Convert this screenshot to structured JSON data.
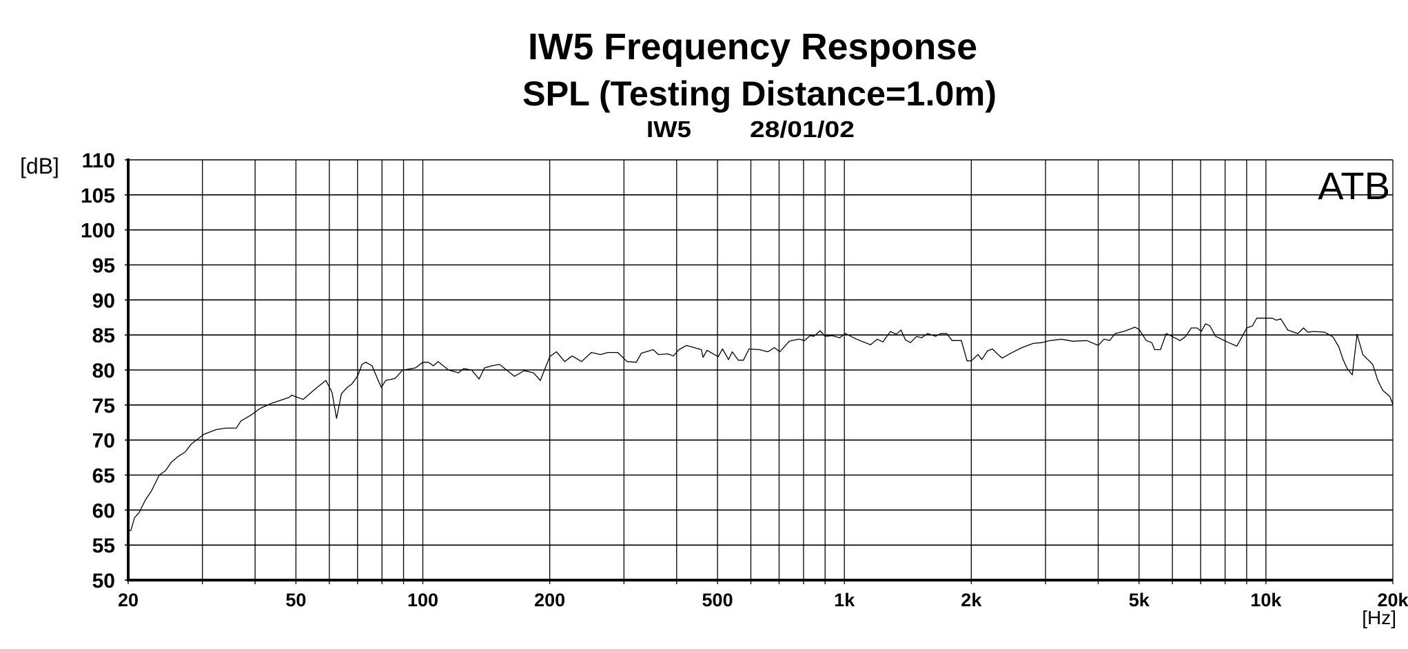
{
  "chart_data": {
    "type": "line",
    "title": "IW5 Frequency Response",
    "subtitle": "SPL (Testing Distance=1.0m)",
    "info_model": "IW5",
    "info_date": "28/01/02",
    "watermark": "ATB",
    "xlabel": "[Hz]",
    "ylabel": "[dB]",
    "xscale": "log",
    "xlim": [
      20,
      20000
    ],
    "ylim": [
      50,
      110
    ],
    "grid": true,
    "x_gridlines": [
      20,
      30,
      40,
      50,
      60,
      70,
      80,
      90,
      100,
      200,
      300,
      400,
      500,
      600,
      700,
      800,
      900,
      1000,
      2000,
      3000,
      4000,
      5000,
      6000,
      7000,
      8000,
      9000,
      10000,
      20000
    ],
    "x_tick_labels": [
      {
        "value": 20,
        "label": "20"
      },
      {
        "value": 50,
        "label": "50"
      },
      {
        "value": 100,
        "label": "100"
      },
      {
        "value": 200,
        "label": "200"
      },
      {
        "value": 500,
        "label": "500"
      },
      {
        "value": 1000,
        "label": "1k"
      },
      {
        "value": 2000,
        "label": "2k"
      },
      {
        "value": 5000,
        "label": "5k"
      },
      {
        "value": 10000,
        "label": "10k"
      },
      {
        "value": 20000,
        "label": "20k"
      }
    ],
    "y_ticks": [
      50,
      55,
      60,
      65,
      70,
      75,
      80,
      85,
      90,
      95,
      100,
      105,
      110
    ],
    "y_tick_labels": [
      "50",
      "55",
      "60",
      "65",
      "70",
      "75",
      "80",
      "85",
      "90",
      "95",
      "100",
      "105",
      "110"
    ],
    "series": [
      {
        "name": "SPL",
        "color": "#000000",
        "x": [
          20,
          20.3,
          20.7,
          21.2,
          22,
          22.7,
          23.7,
          24.5,
          25.3,
          26.2,
          27.3,
          28.2,
          30.2,
          32.4,
          34.2,
          36.1,
          37,
          39.2,
          41.1,
          43.6,
          48.2,
          48.8,
          52,
          56.1,
          58.9,
          60.9,
          62.4,
          64.1,
          66.1,
          67.9,
          70.1,
          71.7,
          73.3,
          75.8,
          78.1,
          79.7,
          81.6,
          86,
          89.6,
          92,
          96,
          100,
          103,
          106,
          108.6,
          115,
          121.5,
          125,
          130.5,
          136,
          140,
          146,
          152,
          165,
          174,
          183,
          190,
          200,
          207.5,
          217,
          226,
          238,
          251,
          264,
          275,
          290,
          305,
          321,
          330,
          352,
          362,
          381,
          393,
          405,
          422,
          458,
          462,
          472,
          502,
          514,
          531,
          542,
          560,
          576,
          594,
          629,
          659,
          682,
          703,
          740,
          780,
          804,
          829,
          846,
          876,
          900,
          936,
          975,
          1005,
          1069,
          1153,
          1197,
          1234,
          1286,
          1327,
          1362,
          1396,
          1434,
          1484,
          1524,
          1577,
          1644,
          1695,
          1748,
          1801,
          1894,
          1954,
          2000,
          2075,
          2118,
          2184,
          2243,
          2335,
          2370,
          2483,
          2639,
          2806,
          2939,
          3078,
          3274,
          3482,
          3759,
          4000,
          4129,
          4257,
          4389,
          4596,
          4889,
          5002,
          5200,
          5360,
          5445,
          5620,
          5800,
          6260,
          6452,
          6650,
          6865,
          7025,
          7190,
          7360,
          7600,
          8090,
          8530,
          9010,
          9290,
          9510,
          10350,
          10590,
          10840,
          11270,
          11900,
          12280,
          12570,
          12970,
          13780,
          14430,
          14890,
          15240,
          15590,
          16030,
          16450,
          16970,
          17920,
          18430,
          18920,
          19680,
          20000
        ],
        "y": [
          57.1,
          57.1,
          58.9,
          59.6,
          61.5,
          62.7,
          65,
          65.6,
          66.8,
          67.6,
          68.3,
          69.4,
          70.8,
          71.5,
          71.7,
          71.7,
          72.7,
          73.6,
          74.5,
          75.2,
          76.1,
          76.4,
          75.8,
          77.5,
          78.5,
          76.8,
          73.1,
          76.6,
          77.5,
          78,
          79.2,
          80.8,
          81.1,
          80.6,
          78.7,
          77.5,
          78.5,
          78.8,
          80,
          80.1,
          80.3,
          81.1,
          81.1,
          80.6,
          81.2,
          80,
          79.6,
          80.2,
          80,
          78.7,
          80.3,
          80.6,
          80.8,
          79.1,
          79.9,
          79.6,
          78.5,
          81.9,
          82.6,
          81.2,
          82,
          81.2,
          82.5,
          82.2,
          82.5,
          82.5,
          81.2,
          81.1,
          82.4,
          82.9,
          82.2,
          82.3,
          82,
          82.9,
          83.5,
          82.9,
          81.8,
          82.8,
          81.9,
          83,
          81.5,
          82.6,
          81.4,
          81.4,
          83,
          82.9,
          82.6,
          83.2,
          82.6,
          84.1,
          84.4,
          84.2,
          84.9,
          84.8,
          85.6,
          84.8,
          84.9,
          84.6,
          85.2,
          84.4,
          83.6,
          84.4,
          84,
          85.5,
          85.1,
          85.7,
          84.3,
          83.9,
          84.8,
          84.6,
          85.2,
          84.8,
          85.2,
          85.2,
          84.2,
          84.2,
          81.3,
          81.3,
          82.2,
          81.5,
          82.7,
          83,
          82,
          81.7,
          82.4,
          83.2,
          83.8,
          83.9,
          84.2,
          84.4,
          84.1,
          84.2,
          83.5,
          84.4,
          84.2,
          85.2,
          85.5,
          86.1,
          85.8,
          84.2,
          83.9,
          82.9,
          82.9,
          85.2,
          84.2,
          84.8,
          86,
          86,
          85.5,
          86.6,
          86.3,
          84.8,
          84,
          83.4,
          86,
          86.3,
          87.4,
          87.4,
          87.1,
          87.3,
          85.7,
          85.2,
          86,
          85.4,
          85.5,
          85.4,
          84.7,
          83.3,
          81.5,
          80.2,
          79.3,
          85.1,
          82.2,
          80.8,
          78.5,
          77.1,
          76.2,
          75.1
        ]
      }
    ]
  }
}
